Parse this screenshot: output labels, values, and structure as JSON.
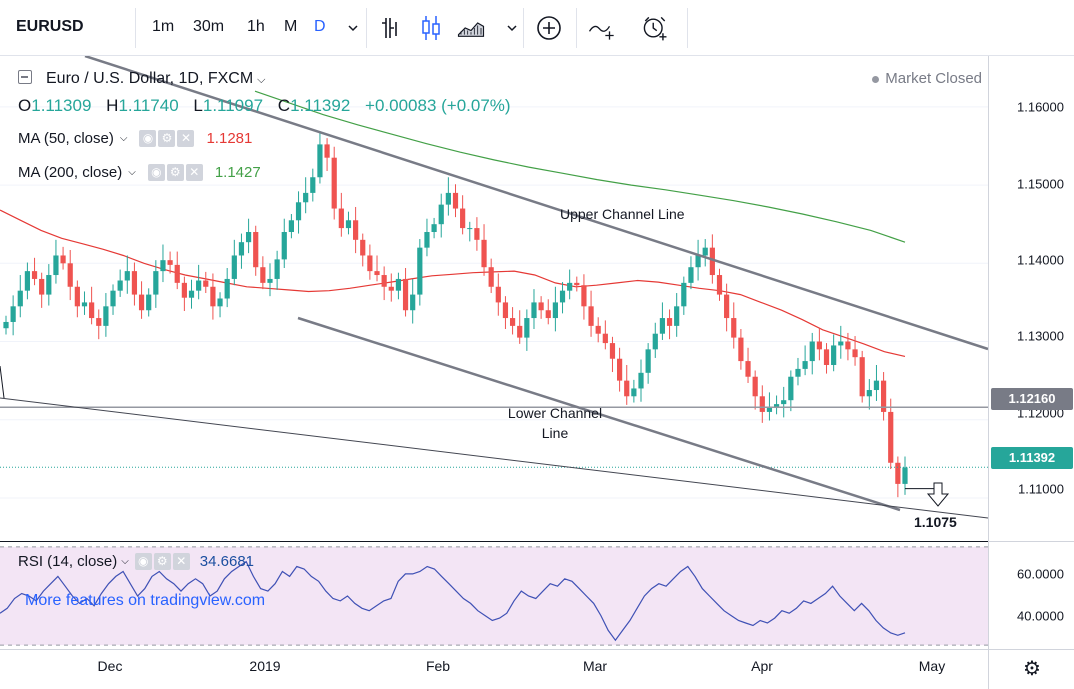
{
  "toolbar": {
    "symbol": "EURUSD",
    "timeframes": [
      "1m",
      "30m",
      "1h",
      "M",
      "D"
    ],
    "active_timeframe": "D",
    "icons": [
      "chevron-down-icon",
      "bar-chart-icon",
      "candles-icon",
      "area-chart-icon",
      "chevron-down-icon",
      "add-indicator-icon",
      "compare-icon",
      "alert-icon"
    ]
  },
  "legend": {
    "title": "Euro / U.S. Dollar, 1D, FXCM",
    "ohlc": {
      "o_label": "O",
      "o": "1.11309",
      "h_label": "H",
      "h": "1.11740",
      "l_label": "L",
      "l": "1.11097",
      "c_label": "C",
      "c": "1.11392",
      "change": "+0.00083 (+0.07%)"
    },
    "ma50": {
      "label": "MA (50, close)",
      "value": "1.1281"
    },
    "ma200": {
      "label": "MA (200, close)",
      "value": "1.1427"
    },
    "status": "Market Closed"
  },
  "annotations": {
    "upper": "Upper Channel Line",
    "lower_1": "Lower Channel",
    "lower_2": "Line",
    "target": "1.1075"
  },
  "price_axis": {
    "ticks": [
      "1.16000",
      "1.15000",
      "1.14000",
      "1.13000",
      "1.12000",
      "1.11000"
    ],
    "level_tag": "1.12160",
    "last_price_tag": "1.11392"
  },
  "rsi": {
    "label": "RSI (14, close)",
    "value": "34.6681",
    "ticks": [
      "60.0000",
      "40.0000"
    ],
    "promo": "More features on tradingview.com"
  },
  "time_axis": [
    "Dec",
    "2019",
    "Feb",
    "Mar",
    "Apr",
    "May"
  ],
  "colors": {
    "up": "#26a69a",
    "down": "#ef5350",
    "ma50": "#e53935",
    "ma200": "#43a047",
    "rsi": "#3f51b5",
    "accent": "#2962ff"
  },
  "chart_data": {
    "type": "candlestick",
    "symbol": "EURUSD",
    "interval": "1D",
    "ylim": [
      1.1045,
      1.1665
    ],
    "start_index": 0,
    "ohlc_close_series": [
      1.1325,
      1.1345,
      1.1365,
      1.139,
      1.138,
      1.136,
      1.1385,
      1.141,
      1.14,
      1.137,
      1.1345,
      1.135,
      1.133,
      1.132,
      1.1345,
      1.1365,
      1.1378,
      1.139,
      1.136,
      1.134,
      1.136,
      1.139,
      1.1404,
      1.1398,
      1.1375,
      1.1356,
      1.1365,
      1.1378,
      1.137,
      1.1345,
      1.1355,
      1.138,
      1.141,
      1.1427,
      1.144,
      1.1395,
      1.1375,
      1.138,
      1.1405,
      1.144,
      1.1455,
      1.1478,
      1.149,
      1.151,
      1.1552,
      1.1535,
      1.147,
      1.1445,
      1.1455,
      1.143,
      1.141,
      1.139,
      1.1385,
      1.137,
      1.1365,
      1.138,
      1.134,
      1.136,
      1.142,
      1.144,
      1.145,
      1.1475,
      1.149,
      1.147,
      1.1445,
      1.1445,
      1.143,
      1.1395,
      1.137,
      1.135,
      1.133,
      1.132,
      1.1305,
      1.133,
      1.135,
      1.134,
      1.133,
      1.135,
      1.1365,
      1.1375,
      1.1372,
      1.1345,
      1.132,
      1.131,
      1.1298,
      1.1278,
      1.125,
      1.123,
      1.124,
      1.126,
      1.129,
      1.131,
      1.133,
      1.132,
      1.1345,
      1.1375,
      1.1395,
      1.141,
      1.142,
      1.1385,
      1.136,
      1.133,
      1.1305,
      1.1275,
      1.1255,
      1.123,
      1.121,
      1.1215,
      1.122,
      1.1225,
      1.1255,
      1.1265,
      1.1275,
      1.13,
      1.129,
      1.127,
      1.1295,
      1.13,
      1.129,
      1.128,
      1.123,
      1.1238,
      1.125,
      1.121,
      1.1145,
      1.1118,
      1.1139
    ],
    "ma50_series": [
      1.1468,
      1.1455,
      1.1442,
      1.1432,
      1.1425,
      1.1418,
      1.141,
      1.14,
      1.1392,
      1.1385,
      1.138,
      1.1375,
      1.137,
      1.1368,
      1.1366,
      1.1364,
      1.1365,
      1.1368,
      1.1372,
      1.1376,
      1.138,
      1.1384,
      1.1386,
      1.1388,
      1.1389,
      1.139,
      1.1385,
      1.1375,
      1.137,
      1.1372,
      1.1375,
      1.1378,
      1.1376,
      1.1372,
      1.1368,
      1.1365,
      1.136,
      1.135,
      1.134,
      1.1328,
      1.1315,
      1.1306,
      1.1297,
      1.1287,
      1.1281
    ],
    "ma200_series": [
      1.162,
      1.1605,
      1.159,
      1.1577,
      1.1565,
      1.1553,
      1.1542,
      1.1532,
      1.1523,
      1.1515,
      1.1507,
      1.15,
      1.1494,
      1.1487,
      1.148,
      1.1472,
      1.1463,
      1.1453,
      1.1442,
      1.1427
    ],
    "horizontal_level": 1.1216,
    "last_price": 1.11392,
    "target": 1.1075,
    "channel": {
      "upper": [
        {
          "x": "2018-11-01",
          "y": 1.168
        },
        {
          "x": "2019-05-01",
          "y": 1.1283
        }
      ],
      "lower": [
        {
          "x": "2018-12-28",
          "y": 1.1323
        },
        {
          "x": "2019-05-01",
          "y": 1.1055
        }
      ]
    },
    "rsi_range": [
      28,
      72
    ],
    "rsi_levels": [
      30,
      70
    ],
    "rsi_series": [
      43,
      45,
      49,
      51,
      50,
      48,
      52,
      55,
      58,
      54,
      50,
      47,
      49,
      46,
      51,
      55,
      58,
      60,
      55,
      50,
      53,
      58,
      60,
      57,
      55,
      52,
      55,
      57,
      55,
      50,
      52,
      57,
      60,
      62,
      64,
      58,
      53,
      52,
      55,
      60,
      58,
      62,
      61,
      58,
      56,
      52,
      49,
      48,
      50,
      47,
      45,
      44,
      46,
      48,
      49,
      56,
      59,
      59,
      60,
      62,
      61,
      58,
      55,
      52,
      49,
      47,
      44,
      42,
      40,
      41,
      43,
      48,
      52,
      50,
      49,
      52,
      55,
      54,
      57,
      56,
      53,
      50,
      47,
      42,
      36,
      32,
      36,
      40,
      45,
      50,
      53,
      55,
      54,
      57,
      60,
      62,
      58,
      53,
      50,
      47,
      44,
      42,
      40,
      39,
      38,
      40,
      39,
      41,
      44,
      43,
      45,
      48,
      47,
      49,
      51,
      54,
      50,
      47,
      44,
      47,
      44,
      40,
      37,
      35,
      34,
      35
    ]
  }
}
